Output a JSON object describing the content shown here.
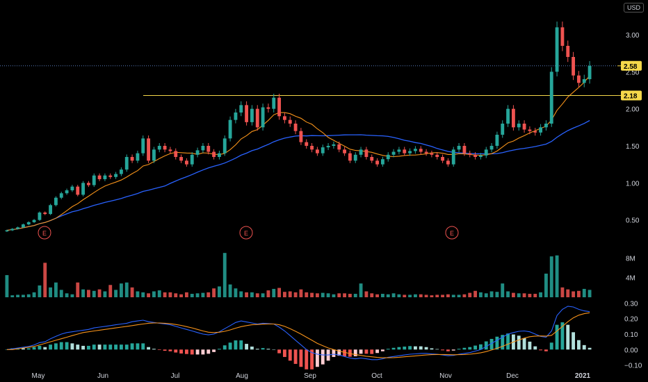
{
  "currency": "USD",
  "chart_data": [
    {
      "type": "candlestick",
      "ylim": [
        0.3,
        3.3
      ],
      "yticks": [
        "3.00",
        "2.50",
        "2.00",
        "1.50",
        "1.00",
        "0.50"
      ],
      "months": [
        "May",
        "Jun",
        "Jul",
        "Aug",
        "Sep",
        "Oct",
        "Nov",
        "Dec",
        "2021"
      ],
      "last_price": "2.58",
      "resistance_label": "2.18",
      "resistance_value": 2.18,
      "earnings_markers": [
        "E",
        "E",
        "E"
      ],
      "colors": {
        "up": "#26a69a",
        "down": "#ef5350",
        "ma_fast": "#f7931a",
        "ma_slow": "#2962ff",
        "level": "#f5d84a"
      },
      "closes": [
        0.36,
        0.38,
        0.4,
        0.44,
        0.47,
        0.5,
        0.6,
        0.58,
        0.7,
        0.8,
        0.86,
        0.9,
        0.95,
        0.84,
        1.0,
        0.97,
        1.1,
        1.05,
        1.1,
        1.08,
        1.12,
        1.18,
        1.35,
        1.3,
        1.4,
        1.6,
        1.3,
        1.45,
        1.5,
        1.45,
        1.43,
        1.35,
        1.3,
        1.25,
        1.38,
        1.44,
        1.5,
        1.42,
        1.35,
        1.4,
        1.6,
        1.85,
        1.95,
        2.05,
        1.82,
        2.0,
        1.75,
        2.02,
        2.0,
        2.15,
        1.9,
        1.85,
        1.8,
        1.7,
        1.55,
        1.5,
        1.45,
        1.4,
        1.48,
        1.5,
        1.52,
        1.45,
        1.4,
        1.3,
        1.38,
        1.45,
        1.35,
        1.3,
        1.25,
        1.32,
        1.38,
        1.42,
        1.45,
        1.4,
        1.43,
        1.46,
        1.42,
        1.4,
        1.38,
        1.35,
        1.3,
        1.25,
        1.45,
        1.5,
        1.4,
        1.38,
        1.35,
        1.37,
        1.45,
        1.5,
        1.65,
        1.8,
        2.0,
        1.75,
        1.8,
        1.72,
        1.7,
        1.68,
        1.75,
        1.8,
        2.5,
        3.1,
        2.85,
        2.7,
        2.45,
        2.35,
        2.4,
        2.58
      ],
      "volume_ylim": [
        0,
        11
      ],
      "volume_ticks": [
        "8M",
        "4M"
      ],
      "volumes": [
        4.5,
        0.4,
        0.5,
        0.5,
        0.6,
        1.0,
        2.4,
        7.0,
        2.0,
        3.0,
        1.5,
        0.8,
        0.6,
        3.0,
        1.6,
        1.5,
        1.3,
        1.6,
        1.2,
        2.5,
        1.5,
        2.8,
        3.0,
        2.0,
        1.2,
        1.0,
        0.8,
        1.2,
        1.4,
        1.0,
        1.0,
        0.8,
        0.6,
        1.0,
        0.7,
        0.8,
        0.9,
        1.0,
        1.8,
        2.2,
        9.0,
        2.6,
        1.8,
        1.2,
        1.0,
        1.0,
        0.8,
        0.8,
        1.4,
        1.7,
        1.9,
        1.1,
        1.2,
        1.0,
        1.6,
        1.0,
        0.9,
        0.8,
        0.9,
        0.8,
        0.6,
        0.8,
        0.8,
        0.7,
        0.7,
        2.8,
        1.2,
        0.8,
        0.6,
        0.7,
        0.6,
        0.8,
        0.6,
        0.5,
        0.5,
        0.6,
        0.6,
        0.5,
        0.4,
        0.5,
        0.5,
        0.6,
        0.5,
        0.5,
        0.6,
        0.9,
        1.3,
        1.0,
        0.8,
        1.2,
        1.1,
        2.8,
        1.2,
        0.9,
        0.8,
        0.8,
        0.7,
        0.7,
        1.0,
        4.8,
        8.3,
        8.5,
        2.0,
        1.6,
        1.2,
        1.3,
        1.7,
        1.5
      ],
      "macd_ylim": [
        -0.12,
        0.32
      ],
      "macd_ticks": [
        "0.30",
        "0.20",
        "0.10",
        "0.00",
        "−0.10"
      ],
      "macd_line": [
        0.0,
        0.005,
        0.01,
        0.015,
        0.02,
        0.03,
        0.045,
        0.05,
        0.07,
        0.085,
        0.1,
        0.11,
        0.115,
        0.12,
        0.125,
        0.13,
        0.14,
        0.145,
        0.15,
        0.155,
        0.16,
        0.165,
        0.17,
        0.18,
        0.185,
        0.19,
        0.18,
        0.175,
        0.17,
        0.165,
        0.16,
        0.15,
        0.14,
        0.13,
        0.12,
        0.11,
        0.1,
        0.095,
        0.1,
        0.115,
        0.135,
        0.155,
        0.175,
        0.185,
        0.178,
        0.172,
        0.165,
        0.17,
        0.168,
        0.165,
        0.145,
        0.12,
        0.09,
        0.06,
        0.03,
        0.0,
        -0.02,
        -0.03,
        -0.035,
        -0.035,
        -0.03,
        -0.035,
        -0.045,
        -0.055,
        -0.06,
        -0.055,
        -0.06,
        -0.065,
        -0.065,
        -0.06,
        -0.05,
        -0.045,
        -0.04,
        -0.035,
        -0.03,
        -0.028,
        -0.025,
        -0.025,
        -0.028,
        -0.03,
        -0.035,
        -0.04,
        -0.038,
        -0.03,
        -0.025,
        -0.02,
        -0.01,
        0.0,
        0.02,
        0.04,
        0.06,
        0.08,
        0.1,
        0.11,
        0.118,
        0.12,
        0.115,
        0.1,
        0.085,
        0.08,
        0.12,
        0.22,
        0.26,
        0.28,
        0.275,
        0.26,
        0.25,
        0.245
      ],
      "signal_line": [
        0.0,
        0.0,
        0.005,
        0.01,
        0.015,
        0.02,
        0.03,
        0.04,
        0.05,
        0.06,
        0.07,
        0.08,
        0.09,
        0.1,
        0.11,
        0.115,
        0.12,
        0.125,
        0.13,
        0.135,
        0.14,
        0.145,
        0.15,
        0.155,
        0.16,
        0.165,
        0.17,
        0.172,
        0.172,
        0.17,
        0.167,
        0.162,
        0.156,
        0.148,
        0.14,
        0.13,
        0.12,
        0.112,
        0.11,
        0.112,
        0.118,
        0.127,
        0.138,
        0.148,
        0.155,
        0.16,
        0.162,
        0.164,
        0.165,
        0.165,
        0.16,
        0.15,
        0.135,
        0.118,
        0.1,
        0.08,
        0.06,
        0.04,
        0.025,
        0.01,
        0.0,
        -0.01,
        -0.018,
        -0.026,
        -0.033,
        -0.038,
        -0.043,
        -0.047,
        -0.051,
        -0.053,
        -0.053,
        -0.052,
        -0.05,
        -0.047,
        -0.044,
        -0.041,
        -0.038,
        -0.035,
        -0.033,
        -0.032,
        -0.032,
        -0.033,
        -0.034,
        -0.033,
        -0.032,
        -0.03,
        -0.026,
        -0.021,
        -0.013,
        -0.003,
        0.008,
        0.021,
        0.035,
        0.049,
        0.062,
        0.074,
        0.083,
        0.087,
        0.088,
        0.087,
        0.092,
        0.12,
        0.15,
        0.18,
        0.205,
        0.222,
        0.232,
        0.238
      ],
      "macd_hist_colors": {
        "pos_strong": "#26a69a",
        "pos_weak": "#b2dfdb",
        "neg_strong": "#ef5350",
        "neg_weak": "#ffcdd2"
      }
    }
  ]
}
